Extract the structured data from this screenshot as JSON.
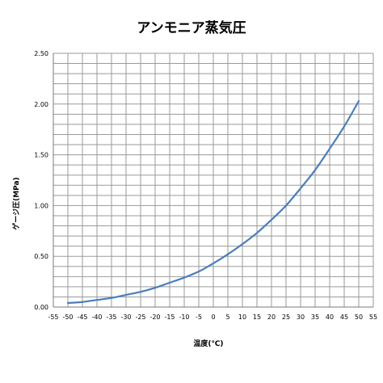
{
  "chart_data": {
    "type": "line",
    "title": "アンモニア蒸気圧",
    "xlabel": "温度(℃)",
    "ylabel": "ゲージ圧(MPa)",
    "xlim": [
      -55,
      55
    ],
    "ylim": [
      0,
      2.5
    ],
    "grid": true,
    "x_tick_labels": [
      "-55",
      "-50",
      "-45",
      "-40",
      "-35",
      "-30",
      "-25",
      "-20",
      "-15",
      "-10",
      "-5",
      "0",
      "5",
      "10",
      "15",
      "20",
      "25",
      "30",
      "35",
      "40",
      "45",
      "50",
      "55"
    ],
    "y_tick_labels": [
      "0.00",
      "0.50",
      "1.00",
      "1.50",
      "2.00",
      "2.50"
    ],
    "series": [
      {
        "color": "#4a7ebb",
        "x": [
          -50,
          -45,
          -40,
          -35,
          -30,
          -25,
          -20,
          -15,
          -10,
          -5,
          0,
          5,
          10,
          15,
          20,
          25,
          30,
          35,
          40,
          45,
          50
        ],
        "y": [
          0.04,
          0.05,
          0.07,
          0.09,
          0.12,
          0.15,
          0.19,
          0.24,
          0.29,
          0.35,
          0.43,
          0.52,
          0.62,
          0.73,
          0.86,
          1.0,
          1.17,
          1.35,
          1.56,
          1.78,
          2.03
        ]
      }
    ]
  }
}
